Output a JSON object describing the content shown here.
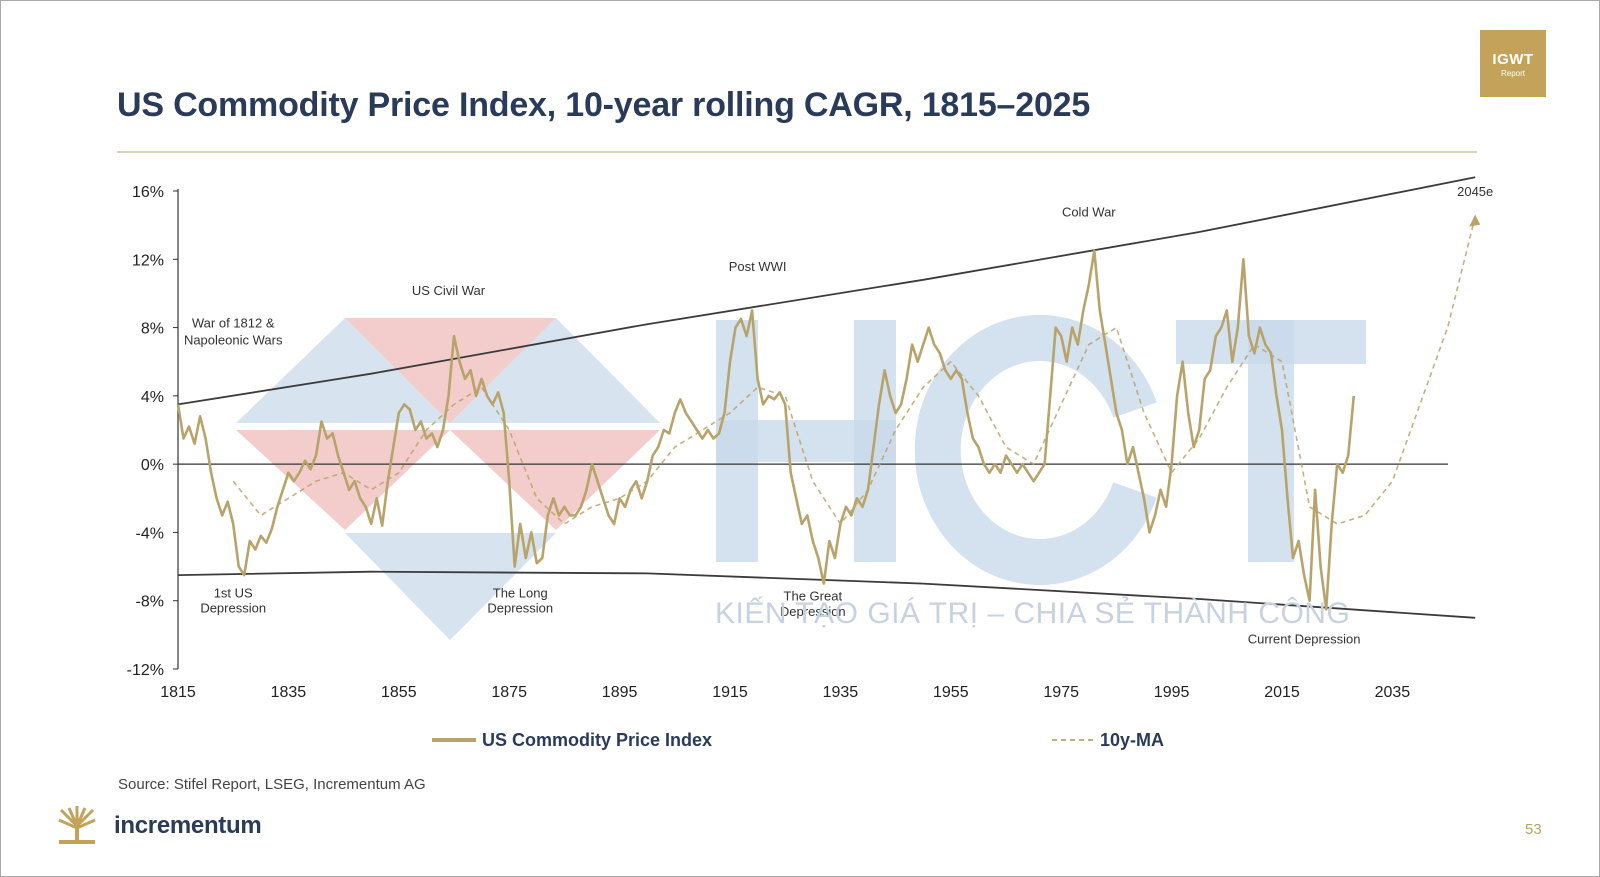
{
  "page": {
    "title": "US Commodity Price Index, 10-year rolling CAGR, 1815–2025",
    "badge_main": "IGWT",
    "badge_sub": "Report",
    "source": "Source: Stifel Report, LSEG, Incrementum AG",
    "logo_text": "incrementum",
    "page_number": "53",
    "watermark_text": "KIẾN TẠO GIÁ TRỊ – CHIA SẺ THÀNH CÔNG",
    "colors": {
      "title": "#2a3b5a",
      "series": "#b8a36a",
      "accent": "#c3a35a",
      "watermark_blue": "#c9d9ea",
      "watermark_red": "#f1c3c3"
    }
  },
  "chart_data": {
    "type": "line",
    "title": "US Commodity Price Index, 10-year rolling CAGR, 1815–2025",
    "xlabel": "",
    "ylabel": "",
    "xlim": [
      1815,
      2045
    ],
    "ylim": [
      -12,
      16
    ],
    "x_ticks": [
      1815,
      1835,
      1855,
      1875,
      1895,
      1915,
      1935,
      1955,
      1975,
      1995,
      2015,
      2035
    ],
    "y_ticks": [
      -12,
      -8,
      -4,
      0,
      4,
      8,
      12,
      16
    ],
    "y_tick_labels": [
      "-12%",
      "-8%",
      "-4%",
      "0%",
      "4%",
      "8%",
      "12%",
      "16%"
    ],
    "grid": false,
    "legend_position": "bottom",
    "series": [
      {
        "name": "US Commodity Price Index",
        "style": "solid",
        "color": "#b8a36a",
        "points": [
          [
            1815,
            3.5
          ],
          [
            1816,
            1.5
          ],
          [
            1817,
            2.2
          ],
          [
            1818,
            1.2
          ],
          [
            1819,
            2.8
          ],
          [
            1820,
            1.5
          ],
          [
            1821,
            -0.5
          ],
          [
            1822,
            -2.0
          ],
          [
            1823,
            -3.0
          ],
          [
            1824,
            -2.2
          ],
          [
            1825,
            -3.5
          ],
          [
            1826,
            -6.0
          ],
          [
            1827,
            -6.5
          ],
          [
            1828,
            -4.5
          ],
          [
            1829,
            -5.0
          ],
          [
            1830,
            -4.2
          ],
          [
            1831,
            -4.6
          ],
          [
            1832,
            -3.8
          ],
          [
            1833,
            -2.5
          ],
          [
            1834,
            -1.5
          ],
          [
            1835,
            -0.5
          ],
          [
            1836,
            -1.0
          ],
          [
            1837,
            -0.5
          ],
          [
            1838,
            0.2
          ],
          [
            1839,
            -0.3
          ],
          [
            1840,
            0.5
          ],
          [
            1841,
            2.5
          ],
          [
            1842,
            1.5
          ],
          [
            1843,
            1.8
          ],
          [
            1844,
            0.5
          ],
          [
            1845,
            -0.5
          ],
          [
            1846,
            -1.5
          ],
          [
            1847,
            -1.0
          ],
          [
            1848,
            -2.0
          ],
          [
            1849,
            -2.5
          ],
          [
            1850,
            -3.5
          ],
          [
            1851,
            -2.0
          ],
          [
            1852,
            -3.6
          ],
          [
            1853,
            -1.0
          ],
          [
            1854,
            1.0
          ],
          [
            1855,
            3.0
          ],
          [
            1856,
            3.5
          ],
          [
            1857,
            3.2
          ],
          [
            1858,
            2.0
          ],
          [
            1859,
            2.5
          ],
          [
            1860,
            1.5
          ],
          [
            1861,
            1.8
          ],
          [
            1862,
            1.0
          ],
          [
            1863,
            2.0
          ],
          [
            1864,
            4.0
          ],
          [
            1865,
            7.5
          ],
          [
            1866,
            6.0
          ],
          [
            1867,
            5.0
          ],
          [
            1868,
            5.5
          ],
          [
            1869,
            4.0
          ],
          [
            1870,
            5.0
          ],
          [
            1871,
            4.0
          ],
          [
            1872,
            3.5
          ],
          [
            1873,
            4.2
          ],
          [
            1874,
            3.0
          ],
          [
            1875,
            -1.0
          ],
          [
            1876,
            -6.0
          ],
          [
            1877,
            -3.5
          ],
          [
            1878,
            -5.5
          ],
          [
            1879,
            -4.0
          ],
          [
            1880,
            -5.8
          ],
          [
            1881,
            -5.5
          ],
          [
            1882,
            -3.0
          ],
          [
            1883,
            -2.0
          ],
          [
            1884,
            -3.0
          ],
          [
            1885,
            -2.5
          ],
          [
            1886,
            -3.0
          ],
          [
            1887,
            -3.0
          ],
          [
            1888,
            -2.5
          ],
          [
            1889,
            -1.5
          ],
          [
            1890,
            0.0
          ],
          [
            1891,
            -1.0
          ],
          [
            1892,
            -2.0
          ],
          [
            1893,
            -3.0
          ],
          [
            1894,
            -3.5
          ],
          [
            1895,
            -2.0
          ],
          [
            1896,
            -2.5
          ],
          [
            1897,
            -1.5
          ],
          [
            1898,
            -1.0
          ],
          [
            1899,
            -2.0
          ],
          [
            1900,
            -1.0
          ],
          [
            1901,
            0.5
          ],
          [
            1902,
            1.0
          ],
          [
            1903,
            2.0
          ],
          [
            1904,
            1.8
          ],
          [
            1905,
            3.0
          ],
          [
            1906,
            3.8
          ],
          [
            1907,
            3.0
          ],
          [
            1908,
            2.5
          ],
          [
            1909,
            2.0
          ],
          [
            1910,
            1.5
          ],
          [
            1911,
            2.0
          ],
          [
            1912,
            1.5
          ],
          [
            1913,
            1.8
          ],
          [
            1914,
            3.0
          ],
          [
            1915,
            6.0
          ],
          [
            1916,
            8.0
          ],
          [
            1917,
            8.5
          ],
          [
            1918,
            7.5
          ],
          [
            1919,
            9.0
          ],
          [
            1920,
            5.0
          ],
          [
            1921,
            3.5
          ],
          [
            1922,
            4.0
          ],
          [
            1923,
            3.8
          ],
          [
            1924,
            4.2
          ],
          [
            1925,
            3.5
          ],
          [
            1926,
            -0.5
          ],
          [
            1927,
            -2.0
          ],
          [
            1928,
            -3.5
          ],
          [
            1929,
            -3.0
          ],
          [
            1930,
            -4.5
          ],
          [
            1931,
            -5.5
          ],
          [
            1932,
            -7.0
          ],
          [
            1933,
            -4.5
          ],
          [
            1934,
            -5.5
          ],
          [
            1935,
            -3.5
          ],
          [
            1936,
            -2.5
          ],
          [
            1937,
            -3.0
          ],
          [
            1938,
            -2.0
          ],
          [
            1939,
            -2.5
          ],
          [
            1940,
            -1.5
          ],
          [
            1941,
            1.0
          ],
          [
            1942,
            3.5
          ],
          [
            1943,
            5.5
          ],
          [
            1944,
            4.0
          ],
          [
            1945,
            3.0
          ],
          [
            1946,
            3.5
          ],
          [
            1947,
            5.0
          ],
          [
            1948,
            7.0
          ],
          [
            1949,
            6.0
          ],
          [
            1950,
            7.0
          ],
          [
            1951,
            8.0
          ],
          [
            1952,
            7.0
          ],
          [
            1953,
            6.5
          ],
          [
            1954,
            5.5
          ],
          [
            1955,
            5.0
          ],
          [
            1956,
            5.5
          ],
          [
            1957,
            5.0
          ],
          [
            1958,
            3.0
          ],
          [
            1959,
            1.5
          ],
          [
            1960,
            1.0
          ],
          [
            1961,
            0.0
          ],
          [
            1962,
            -0.5
          ],
          [
            1963,
            0.0
          ],
          [
            1964,
            -0.5
          ],
          [
            1965,
            0.5
          ],
          [
            1966,
            0.0
          ],
          [
            1967,
            -0.5
          ],
          [
            1968,
            0.0
          ],
          [
            1969,
            -0.5
          ],
          [
            1970,
            -1.0
          ],
          [
            1971,
            -0.5
          ],
          [
            1972,
            0.0
          ],
          [
            1973,
            4.0
          ],
          [
            1974,
            8.0
          ],
          [
            1975,
            7.5
          ],
          [
            1976,
            6.0
          ],
          [
            1977,
            8.0
          ],
          [
            1978,
            7.0
          ],
          [
            1979,
            9.0
          ],
          [
            1980,
            10.5
          ],
          [
            1981,
            12.5
          ],
          [
            1982,
            9.0
          ],
          [
            1983,
            7.0
          ],
          [
            1984,
            5.0
          ],
          [
            1985,
            3.0
          ],
          [
            1986,
            2.0
          ],
          [
            1987,
            0.0
          ],
          [
            1988,
            1.0
          ],
          [
            1989,
            -0.5
          ],
          [
            1990,
            -2.0
          ],
          [
            1991,
            -4.0
          ],
          [
            1992,
            -3.0
          ],
          [
            1993,
            -1.5
          ],
          [
            1994,
            -2.5
          ],
          [
            1995,
            0.0
          ],
          [
            1996,
            4.0
          ],
          [
            1997,
            6.0
          ],
          [
            1998,
            3.0
          ],
          [
            1999,
            1.0
          ],
          [
            2000,
            2.0
          ],
          [
            2001,
            5.0
          ],
          [
            2002,
            5.5
          ],
          [
            2003,
            7.5
          ],
          [
            2004,
            8.0
          ],
          [
            2005,
            9.0
          ],
          [
            2006,
            6.0
          ],
          [
            2007,
            8.0
          ],
          [
            2008,
            12.0
          ],
          [
            2009,
            7.5
          ],
          [
            2010,
            6.5
          ],
          [
            2011,
            8.0
          ],
          [
            2012,
            7.0
          ],
          [
            2013,
            6.5
          ],
          [
            2014,
            4.0
          ],
          [
            2015,
            2.0
          ],
          [
            2016,
            -2.0
          ],
          [
            2017,
            -5.5
          ],
          [
            2018,
            -4.5
          ],
          [
            2019,
            -6.5
          ],
          [
            2020,
            -8.0
          ],
          [
            2021,
            -1.5
          ],
          [
            2022,
            -6.0
          ],
          [
            2023,
            -8.5
          ],
          [
            2024,
            -3.5
          ],
          [
            2025,
            0.0
          ],
          [
            2026,
            -0.5
          ],
          [
            2027,
            0.5
          ],
          [
            2028,
            4.0
          ]
        ]
      },
      {
        "name": "10y-MA",
        "style": "dashed",
        "color": "#b8a36a",
        "points": [
          [
            1825,
            -1.0
          ],
          [
            1830,
            -3.0
          ],
          [
            1835,
            -2.0
          ],
          [
            1840,
            -1.0
          ],
          [
            1845,
            -0.5
          ],
          [
            1850,
            -1.5
          ],
          [
            1855,
            -0.5
          ],
          [
            1860,
            2.0
          ],
          [
            1865,
            3.5
          ],
          [
            1870,
            4.5
          ],
          [
            1875,
            2.0
          ],
          [
            1880,
            -2.0
          ],
          [
            1885,
            -3.5
          ],
          [
            1890,
            -2.5
          ],
          [
            1895,
            -2.0
          ],
          [
            1900,
            -1.0
          ],
          [
            1905,
            1.0
          ],
          [
            1910,
            2.0
          ],
          [
            1915,
            3.0
          ],
          [
            1920,
            4.5
          ],
          [
            1925,
            4.0
          ],
          [
            1930,
            -1.0
          ],
          [
            1935,
            -3.5
          ],
          [
            1940,
            -1.5
          ],
          [
            1945,
            2.0
          ],
          [
            1950,
            4.5
          ],
          [
            1955,
            6.0
          ],
          [
            1960,
            4.0
          ],
          [
            1965,
            1.0
          ],
          [
            1970,
            0.0
          ],
          [
            1975,
            3.5
          ],
          [
            1980,
            7.0
          ],
          [
            1985,
            8.0
          ],
          [
            1990,
            3.0
          ],
          [
            1995,
            -0.5
          ],
          [
            2000,
            1.5
          ],
          [
            2005,
            4.5
          ],
          [
            2010,
            7.0
          ],
          [
            2015,
            6.0
          ],
          [
            2020,
            -2.5
          ],
          [
            2025,
            -3.5
          ],
          [
            2030,
            -3.0
          ],
          [
            2035,
            -1.0
          ],
          [
            2040,
            3.5
          ],
          [
            2045,
            8.0
          ],
          [
            2050,
            14.5
          ]
        ]
      }
    ],
    "trend_lines": [
      {
        "name": "upper",
        "points": [
          [
            1815,
            3.5
          ],
          [
            1850,
            5.3
          ],
          [
            1900,
            8.2
          ],
          [
            1950,
            10.8
          ],
          [
            2000,
            13.6
          ],
          [
            2050,
            16.8
          ]
        ]
      },
      {
        "name": "lower",
        "points": [
          [
            1815,
            -6.5
          ],
          [
            1850,
            -6.3
          ],
          [
            1900,
            -6.4
          ],
          [
            1950,
            -7.0
          ],
          [
            2000,
            -7.9
          ],
          [
            2050,
            -9.0
          ]
        ]
      }
    ],
    "annotations": [
      {
        "text": "War of 1812 &",
        "x": 1825,
        "y": 8.0,
        "anchor": "middle"
      },
      {
        "text": "Napoleonic Wars",
        "x": 1825,
        "y": 7.0,
        "anchor": "middle"
      },
      {
        "text": "US Civil War",
        "x": 1864,
        "y": 9.9,
        "anchor": "middle"
      },
      {
        "text": "Post WWI",
        "x": 1920,
        "y": 11.3,
        "anchor": "middle"
      },
      {
        "text": "Cold War",
        "x": 1980,
        "y": 14.5,
        "anchor": "middle"
      },
      {
        "text": "2045e",
        "x": 2050,
        "y": 15.7,
        "anchor": "middle"
      },
      {
        "text": "1st US",
        "x": 1825,
        "y": -7.8,
        "anchor": "middle"
      },
      {
        "text": "Depression",
        "x": 1825,
        "y": -8.7,
        "anchor": "middle"
      },
      {
        "text": "The Long",
        "x": 1877,
        "y": -7.8,
        "anchor": "middle"
      },
      {
        "text": "Depression",
        "x": 1877,
        "y": -8.7,
        "anchor": "middle"
      },
      {
        "text": "The Great",
        "x": 1930,
        "y": -8.0,
        "anchor": "middle"
      },
      {
        "text": "Depression",
        "x": 1930,
        "y": -8.9,
        "anchor": "middle"
      },
      {
        "text": "Current Depression",
        "x": 2019,
        "y": -10.5,
        "anchor": "middle"
      }
    ]
  }
}
